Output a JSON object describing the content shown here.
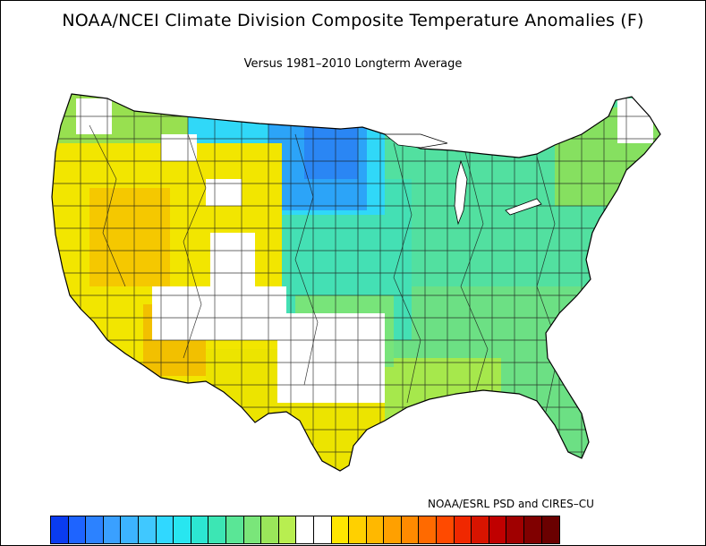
{
  "title": "NOAA/NCEI Climate Division Composite Temperature Anomalies (F)",
  "subtitle": "Versus 1981–2010 Longterm Average",
  "credit": "NOAA/ESRL PSD and CIRES–CU",
  "colorbar": {
    "colors": [
      "#0a3cf0",
      "#1e64ff",
      "#2c82ff",
      "#3aa0ff",
      "#3cb4ff",
      "#40c8ff",
      "#30d8ff",
      "#28e6f0",
      "#2ce6d2",
      "#3ce6b4",
      "#5ae696",
      "#7ae67a",
      "#9ae65a",
      "#b8ee50",
      "#ffffff",
      "#ffffff",
      "#ffe600",
      "#ffd000",
      "#ffb800",
      "#ffa000",
      "#ff8a00",
      "#ff6a00",
      "#ff4a00",
      "#f02800",
      "#d81400",
      "#c00000",
      "#a00000",
      "#800000",
      "#6a0000"
    ]
  },
  "map": {
    "regions": [
      {
        "id": "west-coast-yellow",
        "color": "#f2e600"
      },
      {
        "id": "great-basin-yellow",
        "color": "#f0e000"
      },
      {
        "id": "utah-orange",
        "color": "#f5c800"
      },
      {
        "id": "arizona-orange",
        "color": "#f2c000"
      },
      {
        "id": "southwest-white",
        "color": "#ffffff"
      },
      {
        "id": "texas-yellow",
        "color": "#ece400"
      },
      {
        "id": "pacific-nw-green",
        "color": "#98e050"
      },
      {
        "id": "northern-plains-cyan",
        "color": "#30d8f8"
      },
      {
        "id": "upper-midwest-blue",
        "color": "#2ca4f8"
      },
      {
        "id": "minnesota-core-blue",
        "color": "#2a86f4"
      },
      {
        "id": "central-teal",
        "color": "#44e0b4"
      },
      {
        "id": "east-green",
        "color": "#52e0a0"
      },
      {
        "id": "southeast-green",
        "color": "#70e27c"
      },
      {
        "id": "gulf-lime",
        "color": "#b4ea40"
      },
      {
        "id": "northeast-lime",
        "color": "#86e060"
      }
    ]
  }
}
